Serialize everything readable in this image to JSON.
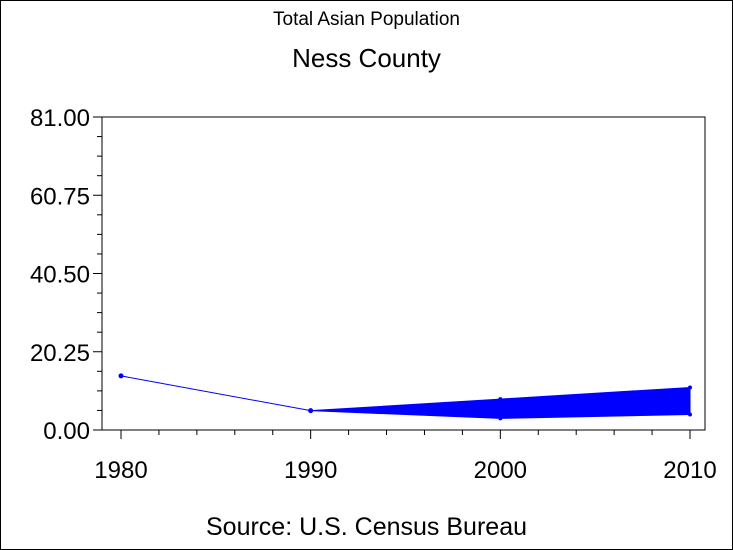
{
  "chart_data": {
    "type": "line",
    "title": "Total Asian Population",
    "subtitle": "Ness County",
    "source": "Source: U.S. Census Bureau",
    "xlabel": "",
    "ylabel": "",
    "x_ticks": [
      "1980",
      "1990",
      "2000",
      "2010"
    ],
    "y_ticks": [
      "0.00",
      "20.25",
      "40.50",
      "60.75",
      "81.00"
    ],
    "xlim": [
      1980,
      2010
    ],
    "ylim": [
      0,
      81
    ],
    "grid": false,
    "series": [
      {
        "x": [
          1980,
          1990
        ],
        "y": [
          14,
          5
        ],
        "style": "line"
      }
    ],
    "band": {
      "x": [
        1990,
        2000,
        2010
      ],
      "upper": [
        5,
        8,
        11
      ],
      "lower": [
        5,
        3,
        4
      ]
    },
    "color": "#0000ff"
  }
}
